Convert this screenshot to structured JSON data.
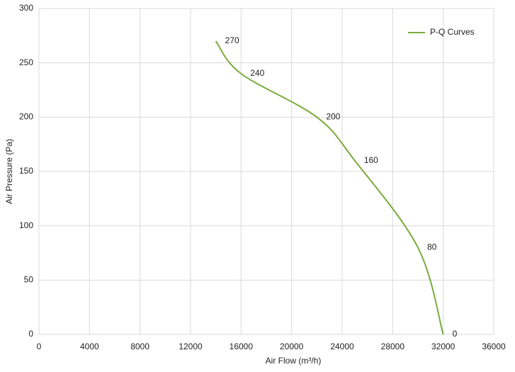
{
  "chart_data": {
    "type": "line",
    "x_label": "Air Flow  (m³/h)",
    "y_label": "Air Pressure  (Pa)",
    "x": [
      14000,
      16000,
      22000,
      25000,
      30000,
      32000
    ],
    "series": [
      {
        "name": "P-Q Curves",
        "color": "#7aab3c",
        "values": [
          270,
          240,
          200,
          160,
          80,
          0
        ]
      }
    ],
    "xlim": [
      0,
      36000
    ],
    "xticks": [
      0,
      4000,
      8000,
      12000,
      16000,
      20000,
      24000,
      28000,
      32000,
      36000
    ],
    "ylim": [
      0,
      300
    ],
    "yticks": [
      0,
      50,
      100,
      150,
      200,
      250,
      300
    ],
    "grid": true,
    "legend": "top-right",
    "data_labels": true
  }
}
